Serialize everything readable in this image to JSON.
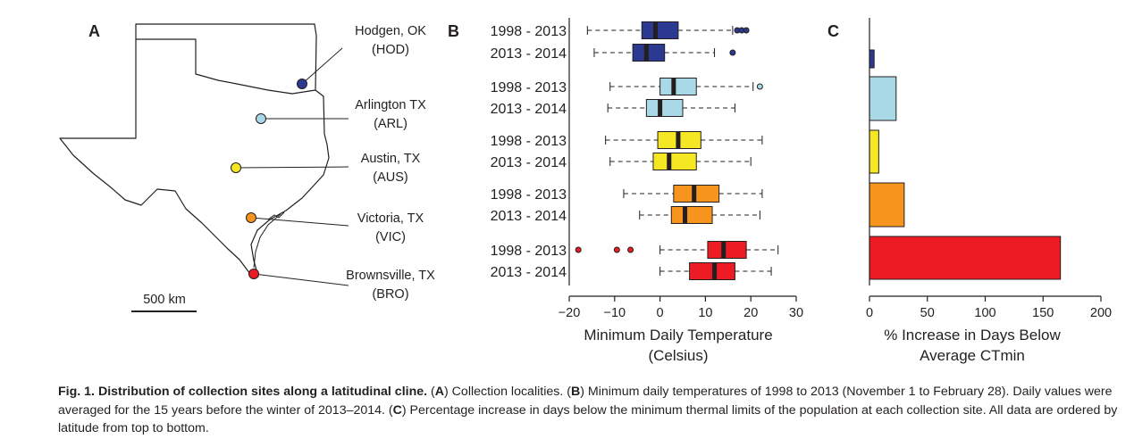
{
  "panels": {
    "a": "A",
    "b": "B",
    "c": "C"
  },
  "map": {
    "scale_label": "500 km",
    "sites": [
      {
        "name": "Hodgen, OK",
        "code": "(HOD)",
        "color": "#2b3990"
      },
      {
        "name": "Arlington TX",
        "code": "(ARL)",
        "color": "#a9d8e6"
      },
      {
        "name": "Austin, TX",
        "code": "(AUS)",
        "color": "#f5e723"
      },
      {
        "name": "Victoria, TX",
        "code": "(VIC)",
        "color": "#f7941d"
      },
      {
        "name": "Brownsville, TX",
        "code": "(BRO)",
        "color": "#ed1c24"
      }
    ]
  },
  "chart_data": [
    {
      "type": "box",
      "panel": "B",
      "xlabel_line1": "Minimum Daily Temperature",
      "xlabel_line2": "(Celsius)",
      "xlim": [
        -20,
        30
      ],
      "xticks": [
        "−20",
        "−10",
        "0",
        "10",
        "20",
        "30"
      ],
      "xtick_values": [
        -20,
        -10,
        0,
        10,
        20,
        30
      ],
      "groups": [
        {
          "site": "HOD",
          "color": "#2b3990",
          "boxes": [
            {
              "label": "1998 - 2013",
              "whisker_low": -16,
              "q1": -4,
              "median": -1,
              "q3": 4,
              "whisker_high": 16,
              "outliers": [
                17,
                18,
                19
              ]
            },
            {
              "label": "2013 - 2014",
              "whisker_low": -14.5,
              "q1": -6,
              "median": -3,
              "q3": 1,
              "whisker_high": 12,
              "outliers": [
                16
              ]
            }
          ]
        },
        {
          "site": "ARL",
          "color": "#a9d8e6",
          "boxes": [
            {
              "label": "1998 - 2013",
              "whisker_low": -11,
              "q1": 0,
              "median": 3,
              "q3": 8,
              "whisker_high": 20.5,
              "outliers": [
                22
              ]
            },
            {
              "label": "2013 - 2014",
              "whisker_low": -11.5,
              "q1": -3,
              "median": 0,
              "q3": 5,
              "whisker_high": 16.5,
              "outliers": []
            }
          ]
        },
        {
          "site": "AUS",
          "color": "#f5e723",
          "boxes": [
            {
              "label": "1998 - 2013",
              "whisker_low": -12,
              "q1": -0.5,
              "median": 4,
              "q3": 9,
              "whisker_high": 22.5,
              "outliers": []
            },
            {
              "label": "2013 - 2014",
              "whisker_low": -11,
              "q1": -1.5,
              "median": 2,
              "q3": 8,
              "whisker_high": 20,
              "outliers": []
            }
          ]
        },
        {
          "site": "VIC",
          "color": "#f7941d",
          "boxes": [
            {
              "label": "1998 - 2013",
              "whisker_low": -8,
              "q1": 3,
              "median": 7.5,
              "q3": 13,
              "whisker_high": 22.5,
              "outliers": []
            },
            {
              "label": "2013 - 2014",
              "whisker_low": -4.5,
              "q1": 2.5,
              "median": 5.5,
              "q3": 11.5,
              "whisker_high": 22,
              "outliers": []
            }
          ]
        },
        {
          "site": "BRO",
          "color": "#ed1c24",
          "boxes": [
            {
              "label": "1998 - 2013",
              "whisker_low": 0,
              "q1": 10.5,
              "median": 14,
              "q3": 19,
              "whisker_high": 26,
              "outliers": [
                -18,
                -9.5,
                -6.5
              ]
            },
            {
              "label": "2013 - 2014",
              "whisker_low": 0,
              "q1": 6.5,
              "median": 12,
              "q3": 16.5,
              "whisker_high": 24.5,
              "outliers": []
            }
          ]
        }
      ]
    },
    {
      "type": "bar",
      "orientation": "horizontal",
      "panel": "C",
      "categories": [
        "HOD",
        "ARL",
        "AUS",
        "VIC",
        "BRO"
      ],
      "values": [
        4,
        23,
        8,
        30,
        165
      ],
      "colors": [
        "#2b3990",
        "#a9d8e6",
        "#f5e723",
        "#f7941d",
        "#ed1c24"
      ],
      "xlabel_line1": "% Increase in Days Below",
      "xlabel_line2": "Average CTmin",
      "xlim": [
        0,
        200
      ],
      "xticks": [
        "0",
        "50",
        "100",
        "150",
        "200"
      ],
      "xtick_values": [
        0,
        50,
        100,
        150,
        200
      ]
    }
  ],
  "caption": {
    "fig_label": "Fig. 1.",
    "title": "Distribution of collection sites along a latitudinal cline.",
    "parts": [
      {
        "pre": " (",
        "letter": "A",
        "post": ") Collection localities. ("
      },
      {
        "pre": "",
        "letter": "B",
        "post": ") Minimum daily temperatures of 1998 to 2013 (November 1 to February 28). Daily values were averaged for the 15 years before the winter of 2013–2014. ("
      },
      {
        "pre": "",
        "letter": "C",
        "post": ") Percentage increase in days below the minimum thermal limits of the population at each collection site. All data are ordered by latitude from top to bottom."
      }
    ]
  }
}
